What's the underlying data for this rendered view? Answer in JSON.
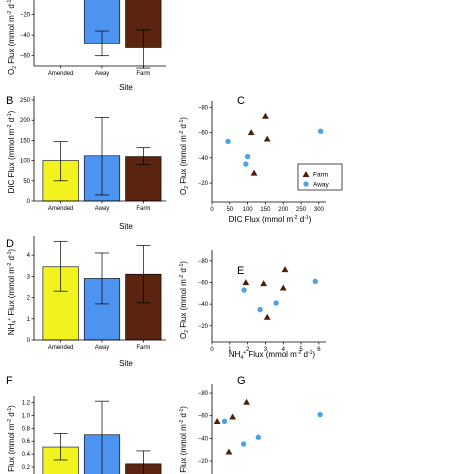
{
  "panels": {
    "B": {
      "letter": "B"
    },
    "C": {
      "letter": "C"
    },
    "D": {
      "letter": "D"
    },
    "E": {
      "letter": "E"
    },
    "F": {
      "letter": "F"
    },
    "G": {
      "letter": "G"
    }
  },
  "axis_text": {
    "site": "Site",
    "o2_flux": "O",
    "o2_sub": "2",
    "flux_word": " Flux",
    "unit_a": "(mmol m",
    "unit_exp": "-2",
    "unit_b": " d",
    "unit_exp2": "-1",
    "unit_c": ")",
    "dic_flux": "DIC Flux",
    "nh4_flux": "NH",
    "nh4_sub": "4",
    "nh4_sup": "+",
    "po4_flux": "O",
    "po4_sup": "3-"
  },
  "legend": {
    "farm": "Farm",
    "away": "Away"
  },
  "colors": {
    "amended": "#f2f21e",
    "away": "#4d94f0",
    "farm": "#5a2410",
    "point_away": "#4aa3e6",
    "point_farm": "#4a1f0c"
  },
  "chart_data": [
    {
      "id": "A",
      "type": "bar",
      "title": "",
      "categories": [
        "Amended",
        "Away",
        "Farm"
      ],
      "values": [
        null,
        -48,
        -52
      ],
      "err_low": [
        null,
        -36,
        -35
      ],
      "err_high": [
        null,
        -60,
        -72
      ],
      "ylim": [
        -70,
        0
      ],
      "yticks": [
        -20,
        -40,
        -60
      ],
      "ytick_labels": [
        "−20",
        "−40",
        "−60"
      ],
      "xlabel": "Site",
      "ylabel": "O2 Flux (mmol m-2 d-1)"
    },
    {
      "id": "B",
      "type": "bar",
      "categories": [
        "Amended",
        "Away",
        "Farm"
      ],
      "values": [
        100,
        112,
        110
      ],
      "err_low": [
        50,
        15,
        90
      ],
      "err_high": [
        147,
        207,
        132
      ],
      "ylim": [
        0,
        260
      ],
      "yticks": [
        0,
        50,
        100,
        150,
        200,
        250
      ],
      "ytick_labels": [
        "0",
        "50",
        "100",
        "150",
        "200",
        "250"
      ],
      "xlabel": "Site",
      "ylabel": "DIC Flux (mmol m-2 d-1)"
    },
    {
      "id": "C",
      "type": "scatter",
      "xlim": [
        0,
        320
      ],
      "ylim": [
        -85,
        -5
      ],
      "xticks": [
        0,
        50,
        100,
        150,
        200,
        250,
        300
      ],
      "xtick_labels": [
        "0",
        "50",
        "100",
        "150",
        "200",
        "250",
        "300"
      ],
      "yticks": [
        -80,
        -60,
        -40,
        -20
      ],
      "ytick_labels": [
        "−80",
        "−60",
        "−40",
        "−20"
      ],
      "xlabel": "DIC Flux (mmol m-2 d-1)",
      "ylabel": "O2 Flux (mmol m-2 d-1)",
      "legend_position": "right",
      "series": [
        {
          "name": "Farm",
          "marker": "triangle",
          "points": [
            [
              110,
              -60
            ],
            [
              150,
              -73
            ],
            [
              155,
              -55
            ],
            [
              118,
              -28
            ]
          ]
        },
        {
          "name": "Away",
          "marker": "circle",
          "points": [
            [
              45,
              -53
            ],
            [
              95,
              -35
            ],
            [
              100,
              -41
            ],
            [
              305,
              -61
            ]
          ]
        }
      ]
    },
    {
      "id": "D",
      "type": "bar",
      "categories": [
        "Amended",
        "Away",
        "Farm"
      ],
      "values": [
        3.45,
        2.9,
        3.1
      ],
      "err_low": [
        2.3,
        1.7,
        1.75
      ],
      "err_high": [
        4.65,
        4.1,
        4.45
      ],
      "ylim": [
        0,
        4.9
      ],
      "yticks": [
        0,
        1,
        2,
        3,
        4
      ],
      "ytick_labels": [
        "0",
        "1",
        "2",
        "3",
        "4"
      ],
      "xlabel": "Site",
      "ylabel": "NH4+ Flux (mmol m-2 d-1)"
    },
    {
      "id": "E",
      "type": "scatter",
      "xlim": [
        0,
        6.4
      ],
      "ylim": [
        -90,
        -5
      ],
      "xticks": [
        0,
        1,
        2,
        3,
        4,
        5,
        6
      ],
      "xtick_labels": [
        "0",
        "1",
        "2",
        "3",
        "4",
        "5",
        "6"
      ],
      "yticks": [
        -80,
        -60,
        -40,
        -20
      ],
      "ytick_labels": [
        "−80",
        "−60",
        "−40",
        "−20"
      ],
      "xlabel": "NH4+ Flux (mmol m-2 d-1)",
      "ylabel": "O2 Flux (mmol m-2 d-1)",
      "series": [
        {
          "name": "Farm",
          "marker": "triangle",
          "points": [
            [
              1.9,
              -60
            ],
            [
              2.9,
              -59
            ],
            [
              4.1,
              -72
            ],
            [
              4.0,
              -55
            ],
            [
              3.1,
              -28
            ]
          ]
        },
        {
          "name": "Away",
          "marker": "circle",
          "points": [
            [
              1.8,
              -53
            ],
            [
              2.7,
              -35
            ],
            [
              3.6,
              -41
            ],
            [
              5.8,
              -61
            ]
          ]
        }
      ]
    },
    {
      "id": "F",
      "type": "bar",
      "categories": [
        "Amended",
        "Away",
        "Farm"
      ],
      "values": [
        0.51,
        0.7,
        0.25
      ],
      "err_low": [
        0.31,
        0.05,
        0.05
      ],
      "err_high": [
        0.72,
        1.22,
        0.45
      ],
      "ylim": [
        0,
        1.3
      ],
      "yticks": [
        0,
        0.2,
        0.4,
        0.6,
        0.8,
        1.0,
        1.2
      ],
      "ytick_labels": [
        "0",
        "0.2",
        "0.4",
        "0.6",
        "0.8",
        "1.0",
        "1.2"
      ],
      "xlabel": "",
      "ylabel": "PO43- Flux (mmol m-2 d-1)"
    },
    {
      "id": "G",
      "type": "scatter",
      "xlim": [
        -0.05,
        1.5
      ],
      "ylim": [
        -88,
        -5
      ],
      "xticks": [],
      "xtick_labels": [],
      "yticks": [
        -80,
        -60,
        -40,
        -20
      ],
      "ytick_labels": [
        "−80",
        "−60",
        "−40",
        "−20"
      ],
      "xlabel": "",
      "ylabel": "O2 Flux (mmol m-2 d-1)",
      "series": [
        {
          "name": "Farm",
          "marker": "triangle",
          "points": [
            [
              0.02,
              -55
            ],
            [
              0.23,
              -59
            ],
            [
              0.42,
              -72
            ],
            [
              0.18,
              -28
            ]
          ]
        },
        {
          "name": "Away",
          "marker": "circle",
          "points": [
            [
              0.12,
              -55
            ],
            [
              0.38,
              -35
            ],
            [
              0.58,
              -41
            ],
            [
              1.42,
              -61
            ]
          ]
        }
      ]
    }
  ]
}
